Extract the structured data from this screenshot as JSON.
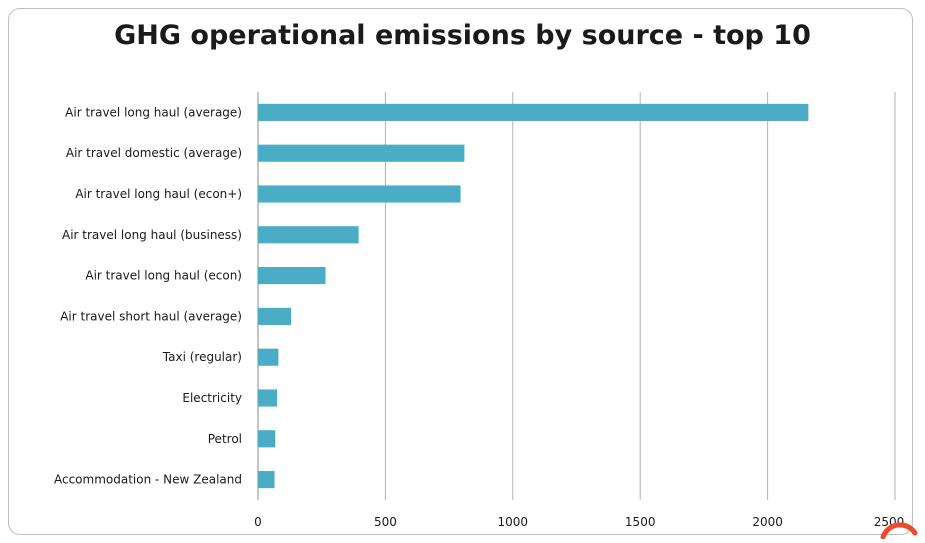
{
  "chart_data": {
    "type": "bar",
    "orientation": "horizontal",
    "title": "GHG operational emissions by source - top 10",
    "xlabel": "",
    "ylabel": "",
    "categories": [
      "Air travel long haul (average)",
      "Air travel domestic (average)",
      "Air travel long haul (econ+)",
      "Air travel long haul (business)",
      "Air travel long haul (econ)",
      "Air travel short haul (average)",
      "Taxi (regular)",
      "Electricity",
      "Petrol",
      "Accommodation - New Zealand"
    ],
    "values": [
      2160,
      810,
      795,
      395,
      265,
      130,
      80,
      75,
      68,
      65
    ],
    "xlim": [
      0,
      2500
    ],
    "xticks": [
      "0",
      "500",
      "1000",
      "1500",
      "2000",
      "2500"
    ],
    "grid": true,
    "legend": "none",
    "bar_color": "#4bacc6"
  }
}
